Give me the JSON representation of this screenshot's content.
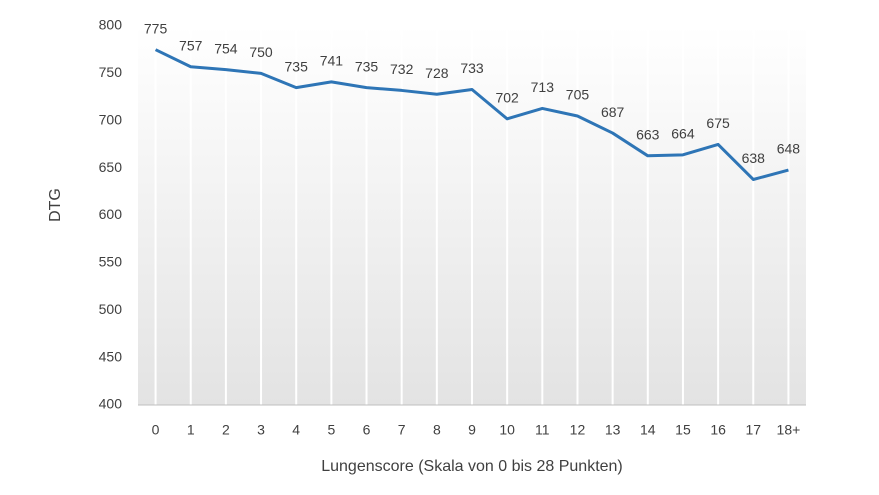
{
  "chart_data": {
    "type": "line",
    "y_label": "DTG",
    "x_label": "Lungenscore (Skala von 0 bis 28 Punkten)",
    "categories": [
      "0",
      "1",
      "2",
      "3",
      "4",
      "5",
      "6",
      "7",
      "8",
      "9",
      "10",
      "11",
      "12",
      "13",
      "14",
      "15",
      "16",
      "17",
      "18+"
    ],
    "series": [
      {
        "color": "#2e75b6",
        "values": [
          775,
          757,
          754,
          750,
          735,
          741,
          735,
          732,
          728,
          733,
          702,
          713,
          705,
          687,
          663,
          664,
          675,
          638,
          648
        ]
      }
    ],
    "ylim": [
      400,
      800
    ],
    "yticks": [
      400,
      450,
      500,
      550,
      600,
      650,
      700,
      750,
      800
    ],
    "grid": true,
    "data_labels": true
  }
}
